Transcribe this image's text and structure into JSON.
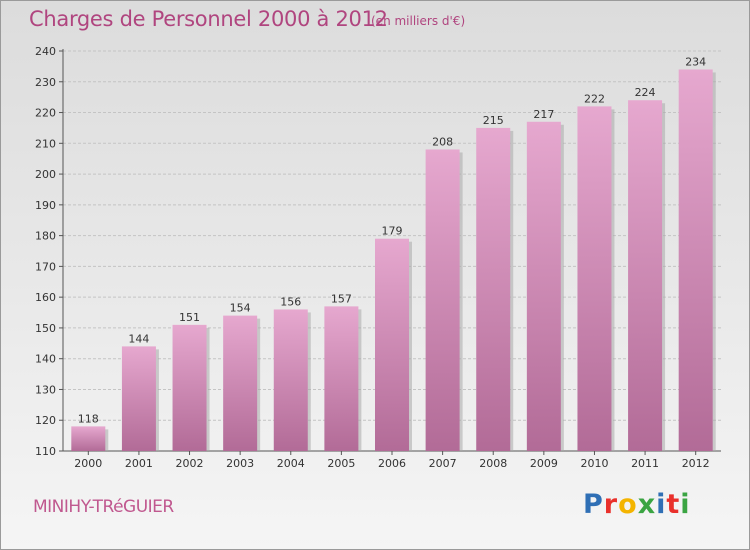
{
  "page": {
    "title": "Charges de Personnel 2000 à 2012",
    "subtitle": "(en milliers d'€)",
    "commune": "MINIHY-TRéGUIER",
    "logo": [
      "P",
      "r",
      "o",
      "x",
      "i",
      "t",
      "i"
    ],
    "logo_colors": [
      "#2f6fb5",
      "#e9302b",
      "#f4b400",
      "#3aa442",
      "#2f6fb5",
      "#e9302b",
      "#3aa442"
    ]
  },
  "colors": {
    "accent": "#b0457f",
    "bar_top": "#e6a8cf",
    "bar_bottom": "#b26b97",
    "bar_shadow": "#a9a9a9"
  },
  "chart_data": {
    "type": "bar",
    "categories": [
      "2000",
      "2001",
      "2002",
      "2003",
      "2004",
      "2005",
      "2006",
      "2007",
      "2008",
      "2009",
      "2010",
      "2011",
      "2012"
    ],
    "values": [
      118,
      144,
      151,
      154,
      156,
      157,
      179,
      208,
      215,
      217,
      222,
      224,
      234
    ],
    "ylim": [
      110,
      240
    ],
    "yticks": [
      110,
      120,
      130,
      140,
      150,
      160,
      170,
      180,
      190,
      200,
      210,
      220,
      230,
      240
    ],
    "grid": true,
    "xlabel": "",
    "ylabel": ""
  }
}
